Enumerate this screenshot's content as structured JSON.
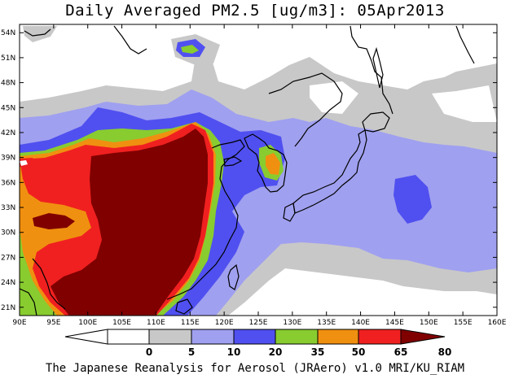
{
  "title": "Daily Averaged PM2.5 [ug/m3]: 05Apr2013",
  "footer": "The Japanese Reanalysis for Aerosol (JRAero) v1.0 MRI/KU_RIAM",
  "map": {
    "lon_range": [
      90,
      160
    ],
    "lat_range": [
      20,
      55
    ],
    "lon_ticks": [
      "90E",
      "95E",
      "100E",
      "105E",
      "110E",
      "115E",
      "120E",
      "125E",
      "130E",
      "135E",
      "140E",
      "145E",
      "150E",
      "155E",
      "160E"
    ],
    "lat_ticks": [
      "21N",
      "24N",
      "27N",
      "30N",
      "33N",
      "36N",
      "39N",
      "42N",
      "45N",
      "48N",
      "51N",
      "54N"
    ]
  },
  "colorbar": {
    "labels": [
      "0",
      "5",
      "10",
      "20",
      "35",
      "50",
      "65",
      "80"
    ],
    "colors": [
      "#ffffff",
      "#c8c8c8",
      "#a0a0f0",
      "#5050f0",
      "#88cc30",
      "#f09010",
      "#f02020",
      "#800000"
    ]
  }
}
